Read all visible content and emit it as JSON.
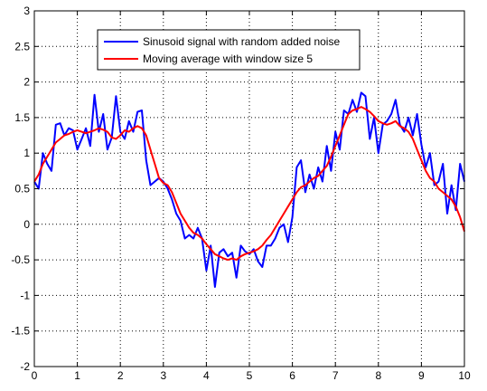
{
  "chart_data": {
    "type": "line",
    "title": "",
    "xlabel": "",
    "ylabel": "",
    "xlim": [
      0,
      10
    ],
    "ylim": [
      -2,
      3
    ],
    "xticks": [
      0,
      1,
      2,
      3,
      4,
      5,
      6,
      7,
      8,
      9,
      10
    ],
    "yticks": [
      -2,
      -1.5,
      -1,
      -0.5,
      0,
      0.5,
      1,
      1.5,
      2,
      2.5,
      3
    ],
    "xtick_labels": [
      "0",
      "1",
      "2",
      "3",
      "4",
      "5",
      "6",
      "7",
      "8",
      "9",
      "10"
    ],
    "ytick_labels": [
      "-2",
      "-1.5",
      "-1",
      "-0.5",
      "0",
      "0.5",
      "1",
      "1.5",
      "2",
      "2.5",
      "3"
    ],
    "grid": true,
    "grid_style": "dotted",
    "legend": {
      "placement": "top-left",
      "entries": [
        "Sinusoid signal with random added noise",
        "Moving average with window size 5"
      ]
    },
    "colors": {
      "noisy": "#0000ff",
      "average": "#ff0000",
      "axes": "#000000",
      "grid": "#000000",
      "background": "#ffffff"
    },
    "series": [
      {
        "name": "Sinusoid signal with random added noise",
        "x": [
          0,
          0.1,
          0.2,
          0.3,
          0.4,
          0.5,
          0.6,
          0.7,
          0.8,
          0.9,
          1.0,
          1.1,
          1.2,
          1.3,
          1.4,
          1.5,
          1.6,
          1.7,
          1.8,
          1.9,
          2.0,
          2.1,
          2.2,
          2.3,
          2.4,
          2.5,
          2.6,
          2.7,
          2.8,
          2.9,
          3.0,
          3.1,
          3.2,
          3.3,
          3.4,
          3.5,
          3.6,
          3.7,
          3.8,
          3.9,
          4.0,
          4.1,
          4.2,
          4.3,
          4.4,
          4.5,
          4.6,
          4.7,
          4.8,
          4.9,
          5.0,
          5.1,
          5.2,
          5.3,
          5.4,
          5.5,
          5.6,
          5.7,
          5.8,
          5.9,
          6.0,
          6.1,
          6.2,
          6.3,
          6.4,
          6.5,
          6.6,
          6.7,
          6.8,
          6.9,
          7.0,
          7.1,
          7.2,
          7.3,
          7.4,
          7.5,
          7.6,
          7.7,
          7.8,
          7.9,
          8.0,
          8.1,
          8.2,
          8.3,
          8.4,
          8.5,
          8.6,
          8.7,
          8.8,
          8.9,
          9.0,
          9.1,
          9.2,
          9.3,
          9.4,
          9.5,
          9.6,
          9.7,
          9.8,
          9.9,
          10.0
        ],
        "values": [
          0.6,
          0.5,
          1.0,
          0.85,
          0.75,
          1.4,
          1.42,
          1.25,
          1.35,
          1.32,
          1.05,
          1.2,
          1.35,
          1.1,
          1.82,
          1.3,
          1.55,
          1.05,
          1.22,
          1.8,
          1.3,
          1.2,
          1.45,
          1.3,
          1.58,
          1.6,
          0.9,
          0.55,
          0.6,
          0.65,
          0.6,
          0.5,
          0.35,
          0.15,
          0.05,
          -0.2,
          -0.15,
          -0.2,
          -0.05,
          -0.2,
          -0.65,
          -0.3,
          -0.88,
          -0.4,
          -0.35,
          -0.45,
          -0.4,
          -0.75,
          -0.3,
          -0.38,
          -0.42,
          -0.35,
          -0.52,
          -0.6,
          -0.3,
          -0.3,
          -0.2,
          -0.05,
          0.0,
          -0.25,
          0.1,
          0.8,
          0.9,
          0.45,
          0.7,
          0.5,
          0.8,
          0.6,
          1.1,
          0.75,
          1.3,
          1.05,
          1.6,
          1.55,
          1.75,
          1.58,
          1.85,
          1.8,
          1.2,
          1.5,
          1.0,
          1.4,
          1.45,
          1.55,
          1.75,
          1.4,
          1.3,
          1.5,
          1.25,
          1.55,
          1.12,
          0.8,
          1.0,
          0.55,
          0.6,
          0.85,
          0.15,
          0.55,
          0.2,
          0.85,
          0.6
        ]
      },
      {
        "name": "Moving average with window size 5",
        "x": [
          0,
          0.1,
          0.2,
          0.3,
          0.4,
          0.5,
          0.6,
          0.7,
          0.8,
          0.9,
          1.0,
          1.1,
          1.2,
          1.3,
          1.4,
          1.5,
          1.6,
          1.7,
          1.8,
          1.9,
          2.0,
          2.1,
          2.2,
          2.3,
          2.4,
          2.5,
          2.6,
          2.7,
          2.8,
          2.9,
          3.0,
          3.1,
          3.2,
          3.3,
          3.4,
          3.5,
          3.6,
          3.7,
          3.8,
          3.9,
          4.0,
          4.1,
          4.2,
          4.3,
          4.4,
          4.5,
          4.6,
          4.7,
          4.8,
          4.9,
          5.0,
          5.1,
          5.2,
          5.3,
          5.4,
          5.5,
          5.6,
          5.7,
          5.8,
          5.9,
          6.0,
          6.1,
          6.2,
          6.3,
          6.4,
          6.5,
          6.6,
          6.7,
          6.8,
          6.9,
          7.0,
          7.1,
          7.2,
          7.3,
          7.4,
          7.5,
          7.6,
          7.7,
          7.8,
          7.9,
          8.0,
          8.1,
          8.2,
          8.3,
          8.4,
          8.5,
          8.6,
          8.7,
          8.8,
          8.9,
          9.0,
          9.1,
          9.2,
          9.3,
          9.4,
          9.5,
          9.6,
          9.7,
          9.8,
          9.9,
          10.0
        ],
        "values": [
          0.6,
          0.7,
          0.85,
          0.95,
          1.05,
          1.15,
          1.2,
          1.25,
          1.27,
          1.3,
          1.32,
          1.3,
          1.28,
          1.3,
          1.32,
          1.35,
          1.33,
          1.3,
          1.22,
          1.2,
          1.25,
          1.32,
          1.3,
          1.35,
          1.38,
          1.35,
          1.25,
          1.05,
          0.85,
          0.65,
          0.58,
          0.55,
          0.45,
          0.3,
          0.15,
          0.05,
          -0.05,
          -0.12,
          -0.15,
          -0.2,
          -0.28,
          -0.35,
          -0.42,
          -0.45,
          -0.48,
          -0.5,
          -0.48,
          -0.5,
          -0.45,
          -0.42,
          -0.4,
          -0.38,
          -0.35,
          -0.3,
          -0.22,
          -0.15,
          -0.05,
          0.05,
          0.15,
          0.25,
          0.35,
          0.45,
          0.52,
          0.55,
          0.6,
          0.65,
          0.68,
          0.75,
          0.82,
          0.95,
          1.1,
          1.25,
          1.4,
          1.55,
          1.6,
          1.62,
          1.65,
          1.62,
          1.58,
          1.52,
          1.45,
          1.42,
          1.4,
          1.42,
          1.45,
          1.38,
          1.35,
          1.3,
          1.2,
          1.05,
          0.9,
          0.75,
          0.65,
          0.6,
          0.5,
          0.45,
          0.4,
          0.35,
          0.25,
          0.1,
          -0.1
        ]
      }
    ]
  }
}
